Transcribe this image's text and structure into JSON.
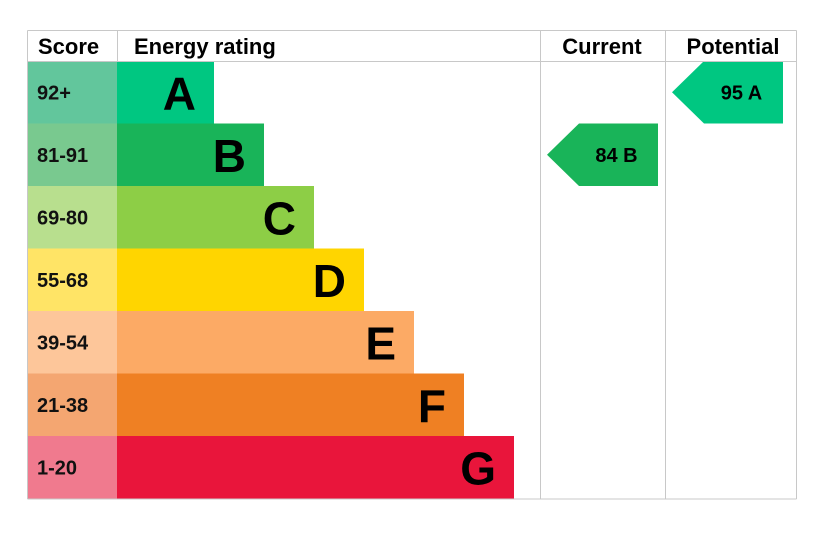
{
  "headers": {
    "score": "Score",
    "rating": "Energy rating",
    "current": "Current",
    "potential": "Potential"
  },
  "chart_data": {
    "type": "bar",
    "bands": [
      {
        "letter": "A",
        "range": "92+",
        "min": 92,
        "max": 100,
        "color": "#00c781",
        "score_bg": "#62c69c"
      },
      {
        "letter": "B",
        "range": "81-91",
        "min": 81,
        "max": 91,
        "color": "#19b459",
        "score_bg": "#79c98f"
      },
      {
        "letter": "C",
        "range": "69-80",
        "min": 69,
        "max": 80,
        "color": "#8dce46",
        "score_bg": "#b8df8e"
      },
      {
        "letter": "D",
        "range": "55-68",
        "min": 55,
        "max": 68,
        "color": "#ffd500",
        "score_bg": "#ffe466"
      },
      {
        "letter": "E",
        "range": "39-54",
        "min": 39,
        "max": 54,
        "color": "#fcaa65",
        "score_bg": "#fdc69a"
      },
      {
        "letter": "F",
        "range": "21-38",
        "min": 21,
        "max": 38,
        "color": "#ef8023",
        "score_bg": "#f4a671"
      },
      {
        "letter": "G",
        "range": "1-20",
        "min": 1,
        "max": 20,
        "color": "#e9153b",
        "score_bg": "#f07a8e"
      }
    ],
    "current": {
      "score": 84,
      "letter": "B",
      "label": "84 B"
    },
    "potential": {
      "score": 95,
      "letter": "A",
      "label": "95 A"
    }
  }
}
